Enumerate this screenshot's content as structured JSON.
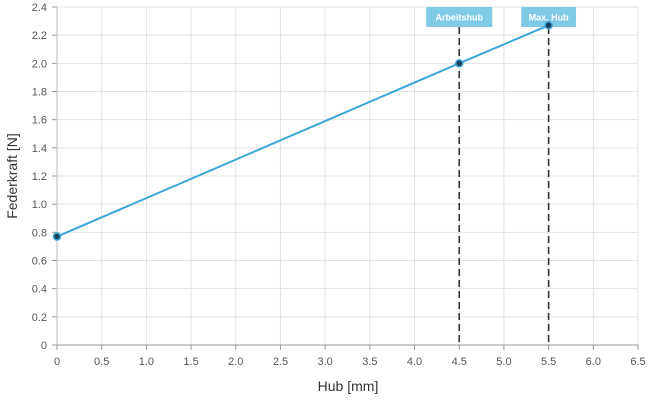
{
  "chart_data": {
    "type": "line",
    "xlabel": "Hub [mm]",
    "ylabel": "Federkraft [N]",
    "xlim": [
      0,
      6.5
    ],
    "ylim": [
      0,
      2.4
    ],
    "x_ticks": [
      "0",
      "0.5",
      "1.0",
      "1.5",
      "2.0",
      "2.5",
      "3.0",
      "3.5",
      "4.0",
      "4.5",
      "5.0",
      "5.5",
      "6.0",
      "6.5"
    ],
    "y_ticks": [
      "0",
      "0.2",
      "0.4",
      "0.6",
      "0.8",
      "1.0",
      "1.2",
      "1.4",
      "1.6",
      "1.8",
      "2.0",
      "2.2",
      "2.4"
    ],
    "grid": true,
    "series": [
      {
        "color": "#3ba7d8",
        "points": [
          {
            "x": 0,
            "y": 0.77
          },
          {
            "x": 4.5,
            "y": 2.0
          },
          {
            "x": 5.5,
            "y": 2.27
          }
        ]
      }
    ],
    "markers": [
      {
        "label": "Arbeitshub",
        "x": 4.5
      },
      {
        "label": "Max. Hub",
        "x": 5.5
      }
    ],
    "flag_color": "#7fcbe6"
  }
}
